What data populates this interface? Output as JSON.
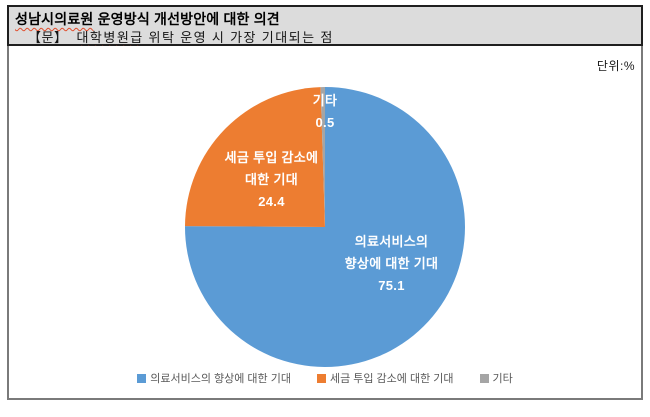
{
  "header": {
    "title": {
      "underlined": "성남시의료원",
      "rest": " 운영방식 개선방안에 대한 의견"
    },
    "question": {
      "prefix": "【문】",
      "underlined": "대학병원급",
      "rest": " 위탁 운영 시 가장 기대되는 점"
    }
  },
  "chart": {
    "unit_label": "단위:%",
    "labels": {
      "medical": {
        "line1": "의료서비스의",
        "line2": "향상에 대한 기대",
        "value": "75.1"
      },
      "tax": {
        "line1": "세금 투입 감소에",
        "line2": "대한 기대",
        "value": "24.4"
      },
      "other": {
        "line1": "기타",
        "value": "0.5"
      }
    },
    "legend": [
      {
        "label": "의료서비스의 향상에 대한 기대",
        "color": "#5B9BD5"
      },
      {
        "label": "세금 투입 감소에 대한 기대",
        "color": "#ED7D31"
      },
      {
        "label": "기타",
        "color": "#A5A5A5"
      }
    ]
  },
  "chart_data": {
    "type": "pie",
    "title": "대학병원급 위탁 운영 시 가장 기대되는 점",
    "unit": "%",
    "categories": [
      "의료서비스의 향상에 대한 기대",
      "세금 투입 감소에 대한 기대",
      "기타"
    ],
    "values": [
      75.1,
      24.4,
      0.5
    ],
    "colors": [
      "#5B9BD5",
      "#ED7D31",
      "#A5A5A5"
    ],
    "slice_ids": [
      "medical-service",
      "tax-reduction",
      "other"
    ],
    "start_angle_deg": 0,
    "direction": "clockwise",
    "legend_position": "bottom",
    "data_labels": "category-and-value-inside-slices"
  }
}
